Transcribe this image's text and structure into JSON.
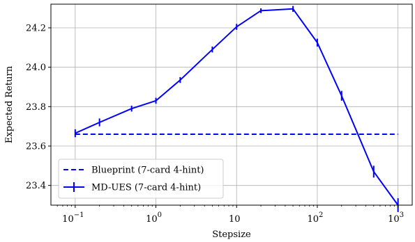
{
  "chart_data": {
    "type": "line",
    "xlabel": "Stepsize",
    "ylabel": "Expected Return",
    "xscale": "log",
    "xlim": [
      0.05,
      1500
    ],
    "ylim": [
      23.3,
      24.32
    ],
    "grid": true,
    "legend_position": "lower-left",
    "x_ticks": [
      {
        "value": 0.1,
        "base": "10",
        "exp": "−1"
      },
      {
        "value": 1,
        "base": "10",
        "exp": "0"
      },
      {
        "value": 10,
        "base": "10",
        "exp": ""
      },
      {
        "value": 100,
        "base": "10",
        "exp": "2"
      },
      {
        "value": 1000,
        "base": "10",
        "exp": "3"
      }
    ],
    "y_ticks": [
      {
        "value": 23.4,
        "label": "23.4"
      },
      {
        "value": 23.6,
        "label": "23.6"
      },
      {
        "value": 23.8,
        "label": "23.8"
      },
      {
        "value": 24.0,
        "label": "24.0"
      },
      {
        "value": 24.2,
        "label": "24.2"
      }
    ],
    "series": [
      {
        "name": "Blueprint (7-card 4-hint)",
        "style": "dashed",
        "color": "#0000ff",
        "x": [
          0.1,
          1000
        ],
        "y": [
          23.66,
          23.66
        ]
      },
      {
        "name": "MD-UES (7-card 4-hint)",
        "style": "solid-errorbar",
        "color": "#0000ff",
        "x": [
          0.1,
          0.2,
          0.5,
          1,
          2,
          5,
          10,
          20,
          50,
          100,
          200,
          500,
          1000
        ],
        "y": [
          23.665,
          23.72,
          23.79,
          23.83,
          23.935,
          24.09,
          24.205,
          24.287,
          24.296,
          24.125,
          23.855,
          23.47,
          23.3
        ],
        "yerr": [
          0.02,
          0.02,
          0.015,
          0.015,
          0.015,
          0.015,
          0.015,
          0.012,
          0.015,
          0.02,
          0.025,
          0.03,
          0.035
        ]
      }
    ]
  }
}
